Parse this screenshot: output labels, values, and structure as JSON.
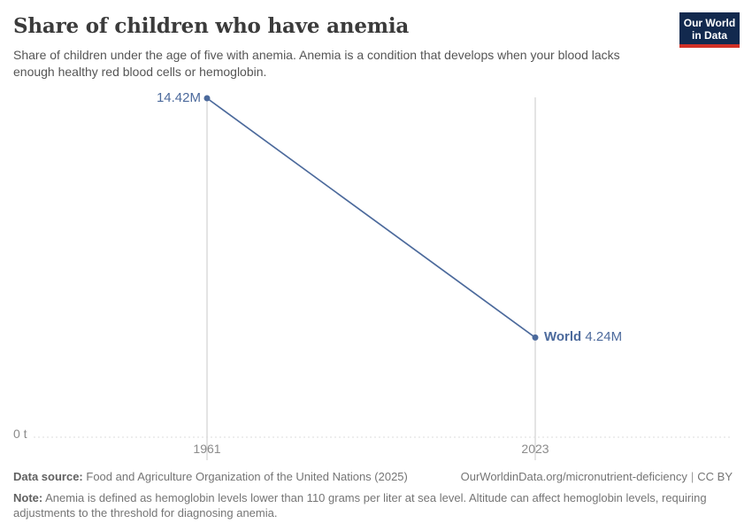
{
  "header": {
    "title": "Share of children who have anemia",
    "subtitle": "Share of children under the age of five with anemia. Anemia is a condition that develops when your blood lacks enough healthy red blood cells or hemoglobin.",
    "logo_line1": "Our World",
    "logo_line2": "in Data"
  },
  "chart_data": {
    "type": "line",
    "title": "Share of children who have anemia",
    "unit": "t",
    "x": [
      1961,
      2023
    ],
    "x_tick_labels": [
      "1961",
      "2023"
    ],
    "series": [
      {
        "name": "World",
        "values": [
          14420000,
          4240000
        ],
        "value_labels": [
          "14.42M",
          "4.24M"
        ],
        "color": "#4c6a9c"
      }
    ],
    "y_axis": {
      "min": 0,
      "zero_label": "0 t",
      "max_shown_value": 14420000
    },
    "grid": "vertical gridlines at each x tick, dashed horizontal zero line",
    "legend_position": "inline label at line end"
  },
  "footer": {
    "source_label": "Data source:",
    "source_text": "Food and Agriculture Organization of the United Nations (2025)",
    "url_text": "OurWorldinData.org/micronutrient-deficiency",
    "divider": "|",
    "license_text": "CC BY",
    "note_label": "Note:",
    "note_text": "Anemia is defined as hemoglobin levels lower than 110 grams per liter at sea level. Altitude can affect hemoglobin levels, requiring adjustments to the threshold for diagnosing anemia."
  },
  "colors": {
    "accent_blue": "#4c6a9c",
    "logo_navy": "#12294e",
    "logo_red": "#d13026",
    "title_text": "#3b3b3b",
    "muted_text": "#757575",
    "axis_text": "#8b8b8b"
  }
}
